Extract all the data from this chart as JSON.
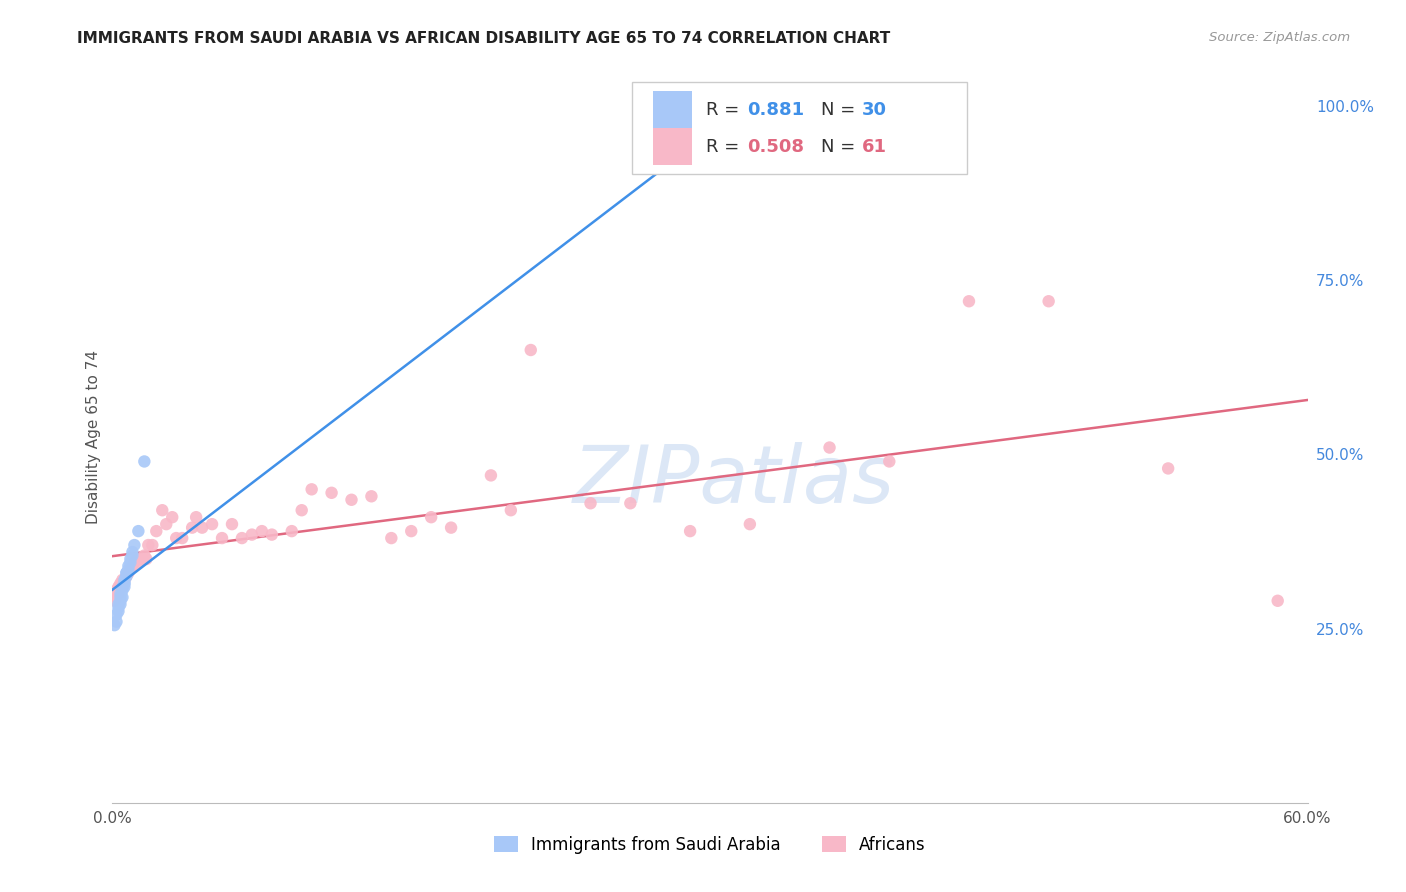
{
  "title": "IMMIGRANTS FROM SAUDI ARABIA VS AFRICAN DISABILITY AGE 65 TO 74 CORRELATION CHART",
  "source": "Source: ZipAtlas.com",
  "ylabel": "Disability Age 65 to 74",
  "xlim": [
    0.0,
    0.6
  ],
  "ylim": [
    0.0,
    1.05
  ],
  "xticks": [
    0.0,
    0.1,
    0.2,
    0.3,
    0.4,
    0.5,
    0.6
  ],
  "xticklabels": [
    "0.0%",
    "",
    "",
    "",
    "",
    "",
    "60.0%"
  ],
  "yticks_right": [
    0.25,
    0.5,
    0.75,
    1.0
  ],
  "ytick_right_labels": [
    "25.0%",
    "50.0%",
    "75.0%",
    "100.0%"
  ],
  "legend_labels": [
    "Immigrants from Saudi Arabia",
    "Africans"
  ],
  "saudi_R": 0.881,
  "saudi_N": 30,
  "african_R": 0.508,
  "african_N": 61,
  "saudi_color": "#a8c8f8",
  "african_color": "#f8b8c8",
  "saudi_line_color": "#4090e8",
  "african_line_color": "#e06880",
  "watermark_color": "#c5d8f0",
  "background_color": "#ffffff",
  "grid_color": "#dddddd",
  "saudi_x": [
    0.001,
    0.002,
    0.002,
    0.003,
    0.003,
    0.003,
    0.004,
    0.004,
    0.004,
    0.004,
    0.005,
    0.005,
    0.005,
    0.006,
    0.006,
    0.006,
    0.006,
    0.007,
    0.007,
    0.007,
    0.008,
    0.008,
    0.009,
    0.009,
    0.01,
    0.01,
    0.011,
    0.013,
    0.016,
    0.325
  ],
  "saudi_y": [
    0.255,
    0.26,
    0.27,
    0.275,
    0.28,
    0.285,
    0.285,
    0.29,
    0.295,
    0.3,
    0.295,
    0.305,
    0.31,
    0.31,
    0.315,
    0.315,
    0.32,
    0.325,
    0.33,
    0.33,
    0.335,
    0.34,
    0.345,
    0.35,
    0.355,
    0.36,
    0.37,
    0.39,
    0.49,
    1.005
  ],
  "african_x": [
    0.001,
    0.002,
    0.002,
    0.003,
    0.003,
    0.004,
    0.004,
    0.005,
    0.005,
    0.006,
    0.007,
    0.008,
    0.009,
    0.01,
    0.011,
    0.012,
    0.013,
    0.015,
    0.016,
    0.017,
    0.018,
    0.02,
    0.022,
    0.025,
    0.027,
    0.03,
    0.032,
    0.035,
    0.04,
    0.042,
    0.045,
    0.05,
    0.055,
    0.06,
    0.065,
    0.07,
    0.075,
    0.08,
    0.09,
    0.095,
    0.1,
    0.11,
    0.12,
    0.13,
    0.14,
    0.15,
    0.16,
    0.17,
    0.19,
    0.2,
    0.21,
    0.24,
    0.26,
    0.29,
    0.32,
    0.36,
    0.39,
    0.43,
    0.47,
    0.53,
    0.585
  ],
  "african_y": [
    0.29,
    0.295,
    0.305,
    0.3,
    0.31,
    0.31,
    0.315,
    0.31,
    0.32,
    0.32,
    0.325,
    0.33,
    0.335,
    0.34,
    0.345,
    0.35,
    0.345,
    0.35,
    0.355,
    0.35,
    0.37,
    0.37,
    0.39,
    0.42,
    0.4,
    0.41,
    0.38,
    0.38,
    0.395,
    0.41,
    0.395,
    0.4,
    0.38,
    0.4,
    0.38,
    0.385,
    0.39,
    0.385,
    0.39,
    0.42,
    0.45,
    0.445,
    0.435,
    0.44,
    0.38,
    0.39,
    0.41,
    0.395,
    0.47,
    0.42,
    0.65,
    0.43,
    0.43,
    0.39,
    0.4,
    0.51,
    0.49,
    0.72,
    0.72,
    0.48,
    0.29
  ],
  "saudi_line_x": [
    0.0,
    0.325
  ],
  "african_line_x": [
    0.0,
    0.6
  ]
}
